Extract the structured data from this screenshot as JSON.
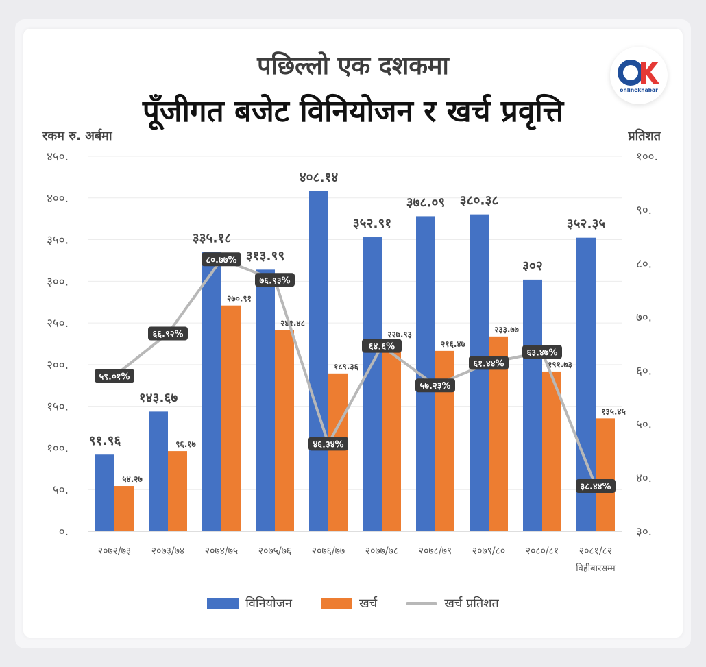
{
  "header": {
    "subtitle": "पछिल्लो एक दशकमा",
    "title": "पूँजीगत बजेट विनियोजन र खर्च प्रवृत्ति"
  },
  "logo": {
    "wordmark": "onlinekhabar",
    "icon": "ok-logo-icon"
  },
  "axes": {
    "left_unit": "रकम रु. अर्बमा",
    "right_unit": "प्रतिशत",
    "left_ticks": [
      "०.",
      "५०.",
      "१००.",
      "१५०.",
      "२००.",
      "२५०.",
      "३००.",
      "३५०.",
      "४००.",
      "४५०."
    ],
    "right_ticks": [
      "३०.",
      "४०.",
      "५०.",
      "६०.",
      "७०.",
      "८०.",
      "९०.",
      "१००."
    ]
  },
  "colors": {
    "allocation": "#4472c4",
    "expense": "#ed7d31",
    "percent_line": "#b8b8b8",
    "percent_label_bg": "#3a3a3a"
  },
  "chart_data": {
    "type": "bar",
    "title": "पूँजीगत बजेट विनियोजन र खर्च प्रवृत्ति",
    "categories": [
      "२०७२/७३",
      "२०७३/७४",
      "२०७४/७५",
      "२०७५/७६",
      "२०७६/७७",
      "२०७७/७८",
      "२०७८/७९",
      "२०७९/८०",
      "२०८०/८१",
      "२०८१/८२"
    ],
    "category_note": "विहीबारसम्म",
    "ylim": [
      0,
      450
    ],
    "y2lim": [
      30,
      100
    ],
    "series": [
      {
        "name": "विनियोजन",
        "values": [
          91.96,
          143.67,
          335.18,
          313.99,
          408.14,
          352.91,
          378.09,
          380.38,
          302,
          352.35
        ],
        "labels": [
          "९१.९६",
          "१४३.६७",
          "३३५.१८",
          "३१३.९९",
          "४०८.१४",
          "३५२.९१",
          "३७८.०९",
          "३८०.३८",
          "३०२",
          "३५२.३५"
        ]
      },
      {
        "name": "खर्च",
        "values": [
          54.27,
          96.17,
          270.91,
          241.48,
          189.36,
          227.93,
          216.47,
          233.77,
          191.73,
          135.45
        ],
        "labels": [
          "५४.२७",
          "९६.१७",
          "२७०.९१",
          "२४१.४८",
          "१८९.३६",
          "२२७.९३",
          "२१६.४७",
          "२३३.७७",
          "१९१.७३",
          "१३५.४५"
        ]
      },
      {
        "name": "खर्च प्रतिशत",
        "type": "line",
        "axis": "right",
        "values": [
          59.01,
          66.92,
          80.77,
          76.93,
          46.34,
          64.6,
          57.23,
          61.44,
          63.47,
          38.44
        ],
        "labels": [
          "५९.०१%",
          "६६.९२%",
          "८०.७७%",
          "७६.९३%",
          "४६.३४%",
          "६४.६%",
          "५७.२३%",
          "६१.४४%",
          "६३.४७%",
          "३८.४४%"
        ]
      }
    ],
    "grid": true,
    "legend": "bottom"
  }
}
